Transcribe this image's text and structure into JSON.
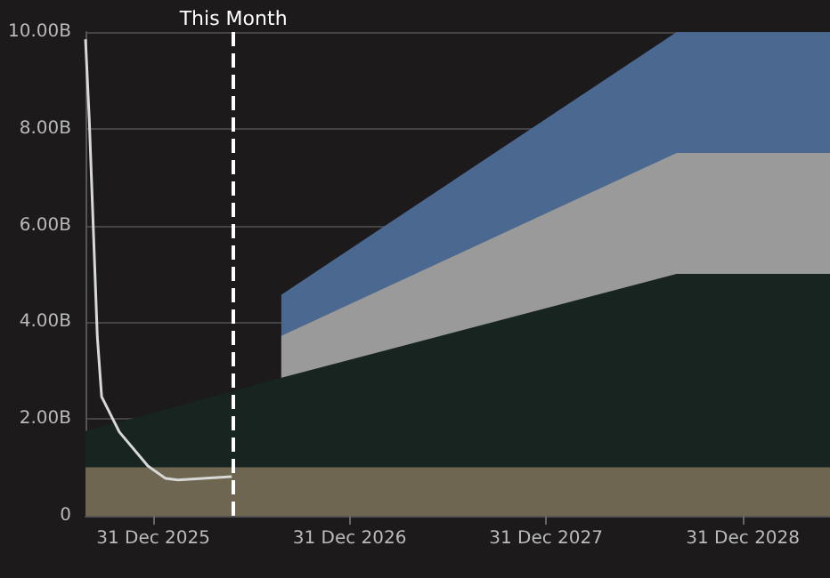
{
  "chart_data": {
    "type": "area",
    "stacked": true,
    "x": [
      "2025-08-27",
      "2026-08-25",
      "2026-08-26",
      "2028-08-30",
      "2029-06-11"
    ],
    "series": [
      {
        "color": "#6e6650",
        "values": [
          1.0,
          1.0,
          1.0,
          1.0,
          1.0
        ]
      },
      {
        "color": "#172420",
        "values": [
          0.75,
          1.85,
          1.87,
          4.0,
          4.0
        ]
      },
      {
        "color": "#9a9a9a",
        "values": [
          null,
          null,
          0.85,
          2.5,
          2.5
        ]
      },
      {
        "color": "#4a6890",
        "values": [
          null,
          null,
          0.85,
          2.5,
          2.5
        ]
      },
      {
        "type": "line",
        "color": "#d8d8d8",
        "x": [
          "2025-08-27",
          "2025-09-03",
          "2025-09-18",
          "2025-09-26",
          "2025-10-29",
          "2025-12-21",
          "2026-01-23",
          "2026-02-15",
          "2026-05-26"
        ],
        "values": [
          9.85,
          8.2,
          3.7,
          2.46,
          1.73,
          1.03,
          0.77,
          0.74,
          0.81
        ]
      }
    ],
    "xlim": [
      "2025-08-27",
      "2029-06-11"
    ],
    "xticks": [
      {
        "value": "2025-12-31",
        "label": "31 Dec 2025"
      },
      {
        "value": "2026-12-31",
        "label": "31 Dec 2026"
      },
      {
        "value": "2027-12-31",
        "label": "31 Dec 2027"
      },
      {
        "value": "2028-12-31",
        "label": "31 Dec 2028"
      }
    ],
    "ylim": [
      0,
      10
    ],
    "yticks": [
      0,
      {
        "value": 2,
        "label": "2.00B"
      },
      {
        "value": 4,
        "label": "4.00B"
      },
      {
        "value": 6,
        "label": "6.00B"
      },
      {
        "value": 8,
        "label": "8.00B"
      },
      {
        "value": 10,
        "label": "10.00B"
      }
    ],
    "grid": "y",
    "marker": "none",
    "ref_lines": [
      {
        "axis": "x",
        "value": "2026-05-29",
        "label": "This Month",
        "color": "#ffffff",
        "line_style": "dashed"
      }
    ]
  }
}
